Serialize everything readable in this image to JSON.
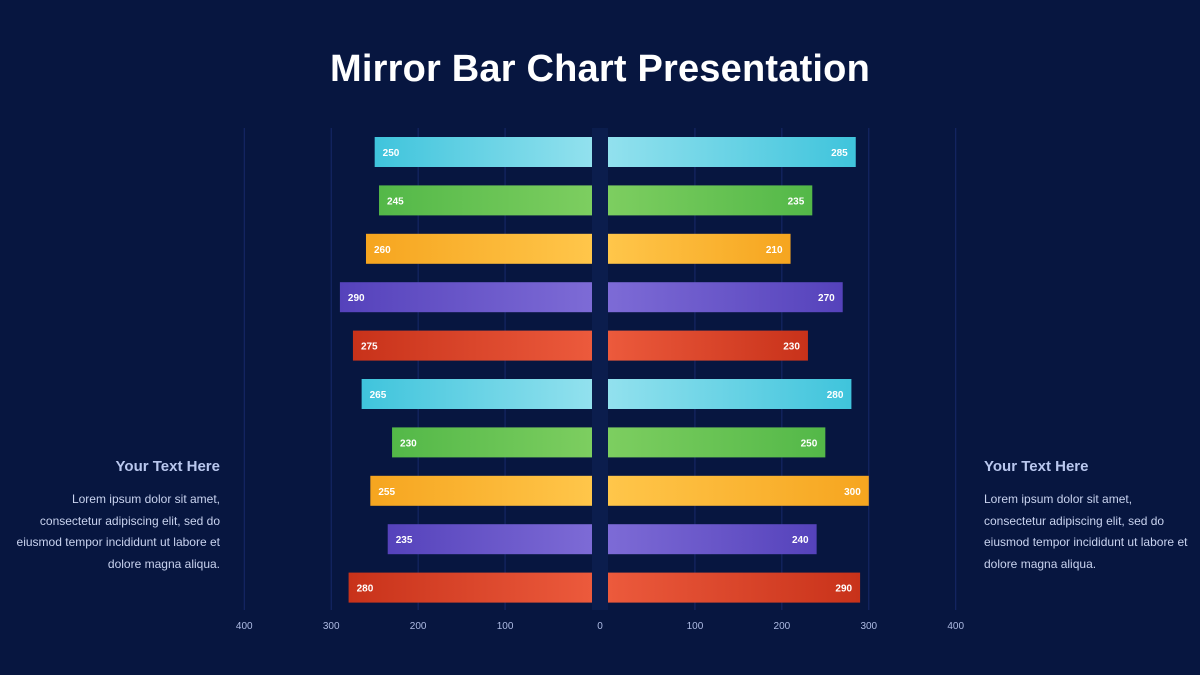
{
  "title": "Mirror Bar Chart Presentation",
  "left_panel": {
    "heading": "Your Text Here",
    "body": "Lorem ipsum dolor sit amet, consectetur adipiscing elit, sed do eiusmod tempor incididunt ut labore et dolore magna aliqua."
  },
  "right_panel": {
    "heading": "Your Text Here",
    "body": "Lorem ipsum dolor sit amet, consectetur adipiscing elit, sed do eiusmod tempor incididunt ut labore et dolore magna aliqua."
  },
  "chart_data": {
    "type": "bar",
    "orientation": "horizontal-mirror",
    "title": "Mirror Bar Chart Presentation",
    "xlabel": "",
    "ylabel": "",
    "xlim": [
      -400,
      400
    ],
    "ticks": [
      "400",
      "300",
      "200",
      "100",
      "0",
      "100",
      "200",
      "300",
      "400"
    ],
    "grid": true,
    "series": [
      {
        "values": [
          250,
          245,
          260,
          290,
          275,
          265,
          230,
          255,
          235,
          280
        ]
      },
      {
        "values": [
          285,
          235,
          210,
          270,
          230,
          280,
          250,
          300,
          240,
          290
        ]
      }
    ],
    "colors": [
      "#3fc4dc",
      "#53b848",
      "#f6a51f",
      "#5542bb",
      "#c8321a",
      "#3fc4dc",
      "#53b848",
      "#f6a51f",
      "#5542bb",
      "#c8321a"
    ],
    "colors_light": [
      "#92e1ee",
      "#7dce60",
      "#ffc64a",
      "#7d6bd6",
      "#ec5a3c",
      "#92e1ee",
      "#7dce60",
      "#ffc64a",
      "#7d6bd6",
      "#ec5a3c"
    ]
  }
}
